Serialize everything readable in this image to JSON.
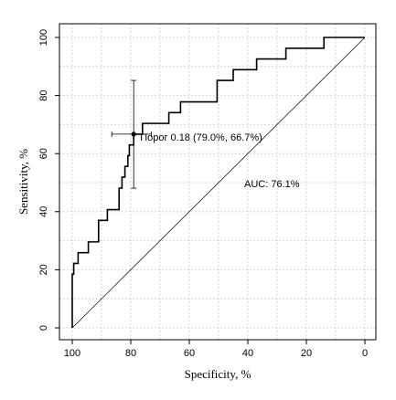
{
  "chart_data": {
    "type": "line",
    "xlabel": "Specificity, %",
    "ylabel": "Sensitivity, %",
    "xlim": [
      100,
      0
    ],
    "ylim": [
      0,
      100
    ],
    "x_reversed": true,
    "grid": true,
    "x_ticks": [
      100,
      80,
      60,
      40,
      20,
      0
    ],
    "y_ticks": [
      0,
      20,
      40,
      60,
      80,
      100
    ],
    "grid_step": 10,
    "series": [
      {
        "values": [
          [
            100,
            0
          ],
          [
            100,
            18.5
          ],
          [
            99.5,
            18.5
          ],
          [
            99.5,
            22.2
          ],
          [
            98,
            22.2
          ],
          [
            98,
            25.9
          ],
          [
            94.5,
            25.9
          ],
          [
            94.5,
            29.6
          ],
          [
            91,
            29.6
          ],
          [
            91,
            37
          ],
          [
            88,
            37
          ],
          [
            88,
            40.7
          ],
          [
            84,
            40.7
          ],
          [
            84,
            48.1
          ],
          [
            83,
            48.1
          ],
          [
            83,
            51.9
          ],
          [
            82,
            51.9
          ],
          [
            82,
            55.6
          ],
          [
            81,
            55.6
          ],
          [
            81,
            59.3
          ],
          [
            80.5,
            59.3
          ],
          [
            80.5,
            63
          ],
          [
            79,
            63
          ],
          [
            79,
            66.7
          ],
          [
            76,
            66.7
          ],
          [
            76,
            70.4
          ],
          [
            67,
            70.4
          ],
          [
            67,
            74.1
          ],
          [
            63,
            74.1
          ],
          [
            63,
            77.8
          ],
          [
            50.5,
            77.8
          ],
          [
            50.5,
            85.2
          ],
          [
            45,
            85.2
          ],
          [
            45,
            88.9
          ],
          [
            37,
            88.9
          ],
          [
            37,
            92.6
          ],
          [
            27,
            92.6
          ],
          [
            27,
            96.3
          ],
          [
            14,
            96.3
          ],
          [
            14,
            100
          ],
          [
            0,
            100
          ]
        ]
      }
    ],
    "diagonal": [
      [
        100,
        0
      ],
      [
        0,
        100
      ]
    ],
    "threshold_point": {
      "x": 79.0,
      "y": 66.7,
      "x_ci": [
        86.5,
        73
      ],
      "y_ci": [
        48.1,
        85.2
      ],
      "label": "Порог 0.18 (79.0%, 66.7%)"
    },
    "auc_text": "AUC: 76.1%"
  }
}
